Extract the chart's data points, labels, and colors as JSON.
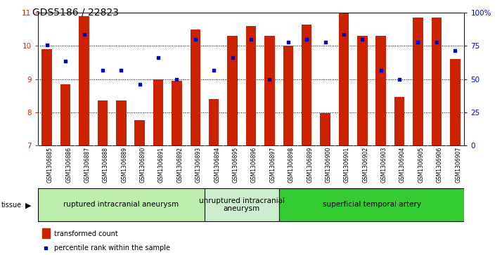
{
  "title": "GDS5186 / 22823",
  "samples": [
    "GSM1306885",
    "GSM1306886",
    "GSM1306887",
    "GSM1306888",
    "GSM1306889",
    "GSM1306890",
    "GSM1306891",
    "GSM1306892",
    "GSM1306893",
    "GSM1306894",
    "GSM1306895",
    "GSM1306896",
    "GSM1306897",
    "GSM1306898",
    "GSM1306899",
    "GSM1306900",
    "GSM1306901",
    "GSM1306902",
    "GSM1306903",
    "GSM1306904",
    "GSM1306905",
    "GSM1306906",
    "GSM1306907"
  ],
  "bar_values": [
    9.9,
    8.85,
    10.9,
    8.35,
    8.35,
    7.77,
    9.0,
    8.95,
    10.5,
    8.4,
    10.3,
    10.6,
    10.3,
    10.0,
    10.65,
    7.98,
    11.0,
    10.3,
    10.3,
    8.45,
    10.85,
    10.85,
    9.6
  ],
  "scatter_values": [
    10.02,
    9.55,
    10.35,
    9.27,
    9.27,
    8.85,
    9.65,
    9.0,
    10.2,
    9.27,
    9.65,
    10.2,
    9.0,
    10.12,
    10.2,
    10.12,
    10.35,
    10.2,
    9.27,
    9.0,
    10.12,
    10.12,
    9.85
  ],
  "bar_color": "#cc2200",
  "scatter_color": "#0000cc",
  "ylim_left": [
    7,
    11
  ],
  "ylim_right": [
    0,
    100
  ],
  "yticks_left": [
    7,
    8,
    9,
    10,
    11
  ],
  "yticks_right": [
    0,
    25,
    50,
    75,
    100
  ],
  "ytick_right_labels": [
    "0",
    "25",
    "50",
    "75",
    "100%"
  ],
  "groups": [
    {
      "label": "ruptured intracranial aneurysm",
      "start": 0,
      "end": 9,
      "color": "#bbeeaa"
    },
    {
      "label": "unruptured intracranial\naneurysm",
      "start": 9,
      "end": 13,
      "color": "#cceecc"
    },
    {
      "label": "superficial temporal artery",
      "start": 13,
      "end": 23,
      "color": "#33cc33"
    }
  ],
  "tissue_label": "tissue",
  "legend_bar_label": "transformed count",
  "legend_scatter_label": "percentile rank within the sample",
  "plot_bg_color": "#ffffff",
  "tick_fontsize": 7.5,
  "label_fontsize": 7,
  "group_fontsize": 7.5
}
